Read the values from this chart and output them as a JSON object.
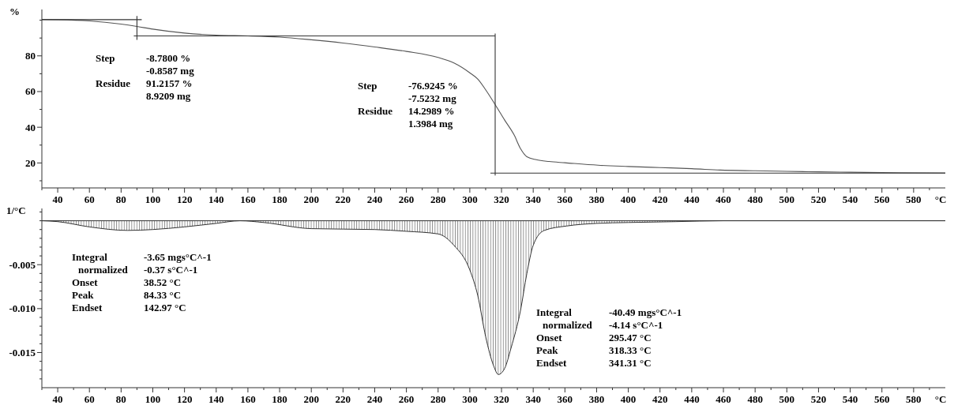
{
  "chart_data": [
    {
      "type": "line",
      "ylabel": "%",
      "xlabel": "°C",
      "xlim": [
        30,
        600
      ],
      "ylim": [
        6,
        106
      ],
      "xticks": [
        40,
        60,
        80,
        100,
        120,
        140,
        160,
        180,
        200,
        220,
        240,
        260,
        280,
        300,
        320,
        340,
        360,
        380,
        400,
        420,
        440,
        460,
        480,
        500,
        520,
        540,
        560,
        580,
        {
          "value": 30,
          "label": null
        },
        {
          "value": 50,
          "label": null
        },
        {
          "value": 70,
          "label": null
        },
        {
          "value": 90,
          "label": null
        },
        {
          "value": 110,
          "label": null
        },
        {
          "value": 130,
          "label": null
        },
        {
          "value": 150,
          "label": null
        },
        {
          "value": 170,
          "label": null
        },
        {
          "value": 190,
          "label": null
        },
        {
          "value": 210,
          "label": null
        },
        {
          "value": 230,
          "label": null
        },
        {
          "value": 250,
          "label": null
        },
        {
          "value": 270,
          "label": null
        },
        {
          "value": 290,
          "label": null
        },
        {
          "value": 310,
          "label": null
        },
        {
          "value": 330,
          "label": null
        },
        {
          "value": 350,
          "label": null
        },
        {
          "value": 370,
          "label": null
        },
        {
          "value": 390,
          "label": null
        },
        {
          "value": 410,
          "label": null
        },
        {
          "value": 430,
          "label": null
        },
        {
          "value": 450,
          "label": null
        },
        {
          "value": 470,
          "label": null
        },
        {
          "value": 490,
          "label": null
        },
        {
          "value": 510,
          "label": null
        },
        {
          "value": 530,
          "label": null
        },
        {
          "value": 550,
          "label": null
        },
        {
          "value": 570,
          "label": null
        },
        {
          "value": 590,
          "label": null
        }
      ],
      "yticks": [
        20,
        40,
        60,
        80,
        {
          "value": 10,
          "label": null
        },
        {
          "value": 30,
          "label": null
        },
        {
          "value": 50,
          "label": null
        },
        {
          "value": 70,
          "label": null
        },
        {
          "value": 90,
          "label": null
        },
        {
          "value": 100,
          "label": null
        }
      ],
      "series": [
        {
          "color": "#555555",
          "x": [
            30,
            40,
            60,
            80,
            90,
            100,
            120,
            140,
            160,
            180,
            200,
            220,
            240,
            260,
            280,
            290,
            300,
            305,
            310,
            316,
            322,
            328,
            332,
            336,
            342,
            350,
            360,
            381,
            400,
            420,
            440,
            458,
            480,
            500,
            520,
            540,
            571,
            600
          ],
          "values": [
            100.4,
            100.3,
            99.6,
            97.8,
            96.5,
            95,
            92.8,
            91.6,
            91.2,
            90.5,
            89,
            87.2,
            85,
            82.5,
            79.1,
            76,
            70.5,
            67,
            61,
            52.7,
            44,
            35.6,
            28,
            23.5,
            21.8,
            20.8,
            20.1,
            18.7,
            18,
            17.4,
            16.8,
            16,
            15.6,
            15.3,
            15,
            14.8,
            14.5,
            14.4
          ]
        },
        {
          "color": "#333333",
          "x": [
            30,
            93
          ],
          "values": [
            100.3,
            100.3
          ]
        },
        {
          "color": "#333333",
          "x": [
            90,
            90
          ],
          "values": [
            102.3,
            89
          ]
        },
        {
          "color": "#333333",
          "x": [
            88,
            316
          ],
          "values": [
            91.2,
            91.2
          ]
        },
        {
          "color": "#333333",
          "x": [
            316,
            316
          ],
          "values": [
            92.5,
            13
          ]
        },
        {
          "color": "#333333",
          "x": [
            313,
            600
          ],
          "values": [
            14.3,
            14.3
          ]
        }
      ],
      "annotations": [
        "Step",
        "-8.7800 %",
        "-0.8587 mg",
        "Residue",
        "91.2157 %",
        "8.9209 mg",
        "Step",
        "-76.9245 %",
        "-7.5232 mg",
        "Residue",
        "14.2989 %",
        "1.3984 mg"
      ]
    },
    {
      "type": "area",
      "ylabel": "1/°C",
      "xlabel": "°C",
      "xlim": [
        30,
        600
      ],
      "ylim": [
        -0.019,
        0.0014
      ],
      "xticks": [
        40,
        60,
        80,
        100,
        120,
        140,
        160,
        180,
        200,
        220,
        240,
        260,
        280,
        300,
        320,
        340,
        360,
        380,
        400,
        420,
        440,
        460,
        480,
        500,
        520,
        540,
        560,
        580,
        {
          "value": 30,
          "label": null
        },
        {
          "value": 50,
          "label": null
        },
        {
          "value": 70,
          "label": null
        },
        {
          "value": 90,
          "label": null
        },
        {
          "value": 110,
          "label": null
        },
        {
          "value": 130,
          "label": null
        },
        {
          "value": 150,
          "label": null
        },
        {
          "value": 170,
          "label": null
        },
        {
          "value": 190,
          "label": null
        },
        {
          "value": 210,
          "label": null
        },
        {
          "value": 230,
          "label": null
        },
        {
          "value": 250,
          "label": null
        },
        {
          "value": 270,
          "label": null
        },
        {
          "value": 290,
          "label": null
        },
        {
          "value": 310,
          "label": null
        },
        {
          "value": 330,
          "label": null
        },
        {
          "value": 350,
          "label": null
        },
        {
          "value": 370,
          "label": null
        },
        {
          "value": 390,
          "label": null
        },
        {
          "value": 410,
          "label": null
        },
        {
          "value": 430,
          "label": null
        },
        {
          "value": 450,
          "label": null
        },
        {
          "value": 470,
          "label": null
        },
        {
          "value": 490,
          "label": null
        },
        {
          "value": 510,
          "label": null
        },
        {
          "value": 530,
          "label": null
        },
        {
          "value": 550,
          "label": null
        },
        {
          "value": 570,
          "label": null
        },
        {
          "value": 590,
          "label": null
        }
      ],
      "yticks": [
        {
          "value": -0.015,
          "label": "-0.015"
        },
        {
          "value": -0.01,
          "label": "-0.010"
        },
        {
          "value": -0.005,
          "label": "-0.005"
        },
        {
          "value": -0.018,
          "label": null
        },
        {
          "value": -0.017,
          "label": null
        },
        {
          "value": -0.016,
          "label": null
        },
        {
          "value": -0.014,
          "label": null
        },
        {
          "value": -0.013,
          "label": null
        },
        {
          "value": -0.012,
          "label": null
        },
        {
          "value": -0.011,
          "label": null
        },
        {
          "value": -0.009,
          "label": null
        },
        {
          "value": -0.008,
          "label": null
        },
        {
          "value": -0.007,
          "label": null
        },
        {
          "value": -0.006,
          "label": null
        },
        {
          "value": -0.004,
          "label": null
        },
        {
          "value": -0.003,
          "label": null
        },
        {
          "value": -0.002,
          "label": null
        },
        {
          "value": -0.001,
          "label": null
        },
        {
          "value": 0,
          "label": null
        },
        {
          "value": 0.001,
          "label": null
        }
      ],
      "series": [
        {
          "color": "#333333",
          "x": [
            30,
            40,
            60,
            84,
            100,
            120,
            140,
            155,
            170,
            200,
            240,
            260,
            280,
            290,
            300,
            305,
            310,
            315,
            318,
            322,
            326,
            332,
            336,
            340,
            347,
            361,
            380,
            400,
            430,
            460,
            600
          ],
          "values": [
            0,
            -0.0001,
            -0.0007,
            -0.0011,
            -0.001,
            -0.0007,
            -0.0003,
            0,
            -0.0002,
            -0.0009,
            -0.001,
            -0.0012,
            -0.0015,
            -0.0028,
            -0.0056,
            -0.0085,
            -0.0132,
            -0.0165,
            -0.0175,
            -0.0168,
            -0.0145,
            -0.0102,
            -0.006,
            -0.0028,
            -0.0011,
            -0.0006,
            -0.0003,
            -0.0002,
            -0.0001,
            0,
            0
          ]
        }
      ],
      "ref_lines": [
        {
          "axis": "y",
          "value": 0,
          "color": "#333333"
        }
      ],
      "annotations": [
        "Integral",
        "-3.65 mgs°C^-1",
        "normalized",
        "-0.37 s°C^-1",
        "Onset",
        "38.52 °C",
        "Peak",
        "84.33 °C",
        "Endset",
        "142.97 °C",
        "Integral",
        "-40.49 mgs°C^-1",
        "normalized",
        "-4.14 s°C^-1",
        "Onset",
        "295.47 °C",
        "Peak",
        "318.33 °C",
        "Endset",
        "341.31 °C"
      ]
    }
  ]
}
